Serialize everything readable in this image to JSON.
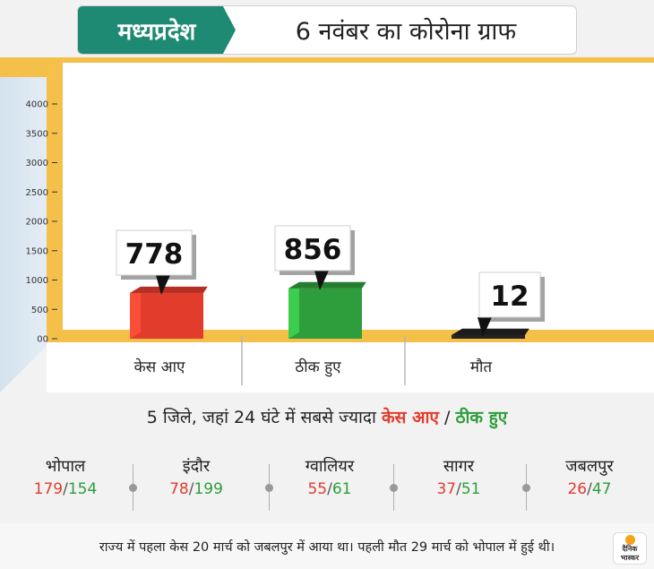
{
  "header": {
    "state": "मध्यप्रदेश",
    "subtitle": "6 नवंबर का कोरोना ग्राफ"
  },
  "colors": {
    "header_accent": "#1f8a73",
    "cases": "#e23c2c",
    "recovered": "#2e9e3c",
    "deaths": "#222222",
    "floor": "#f5c04a"
  },
  "chart_data": {
    "type": "bar",
    "categories": [
      "केस आए",
      "ठीक हुए",
      "मौत"
    ],
    "values": [
      778,
      856,
      12
    ],
    "value_labels": [
      "778",
      "856",
      "12"
    ],
    "bar_colors": [
      "#e23c2c",
      "#2e9e3c",
      "#222222"
    ],
    "yticks": [
      "00",
      "500",
      "1000",
      "1500",
      "2000",
      "2500",
      "3000",
      "3500",
      "4000"
    ],
    "ylim": [
      0,
      4000
    ],
    "grid": false,
    "legend": "none"
  },
  "districts_section": {
    "title_prefix": "5 जिले, जहां 24 घंटे में सबसे ज्यादा",
    "title_cases": "केस आए",
    "title_sep": "/",
    "title_recovered": "ठीक हुए",
    "value_sep": "/",
    "items": [
      {
        "name": "भोपाल",
        "cases": "179",
        "recovered": "154"
      },
      {
        "name": "इंदौर",
        "cases": "78",
        "recovered": "199"
      },
      {
        "name": "ग्वालियर",
        "cases": "55",
        "recovered": "61"
      },
      {
        "name": "सागर",
        "cases": "37",
        "recovered": "51"
      },
      {
        "name": "जबलपुर",
        "cases": "26",
        "recovered": "47"
      }
    ]
  },
  "footer": {
    "note": "राज्य में पहला केस 20 मार्च को जबलपुर में आया था। पहली मौत 29 मार्च को भोपाल में हुई थी।",
    "logo_line1": "दैनिक",
    "logo_line2": "भास्कर"
  }
}
